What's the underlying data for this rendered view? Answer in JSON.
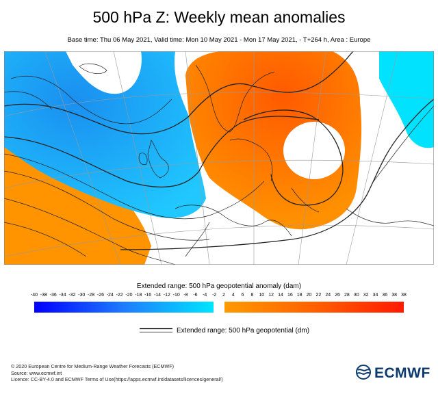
{
  "title": "500 hPa Z: Weekly mean anomalies",
  "subtitle": "Base time: Thu 06 May 2021, Valid time: Mon 10 May 2021 - Mon 17 May 2021, - T+264 h, Area : Europe",
  "colorbar": {
    "title": "Extended range: 500 hPa geopotential anomaly (dam)",
    "ticks": [
      "-40",
      "-38",
      "-36",
      "-34",
      "-32",
      "-30",
      "-28",
      "-26",
      "-24",
      "-22",
      "-20",
      "-18",
      "-16",
      "-14",
      "-12",
      "-10",
      "-8",
      "-6",
      "-4",
      "-2",
      "2",
      "4",
      "6",
      "8",
      "10",
      "12",
      "14",
      "16",
      "18",
      "20",
      "22",
      "24",
      "26",
      "28",
      "30",
      "32",
      "34",
      "36",
      "38",
      "38"
    ],
    "negative_colors": [
      "#0000ff",
      "#1e90ff",
      "#00e5ff"
    ],
    "positive_colors": [
      "#ff8c00",
      "#ff6400",
      "#ff2000"
    ]
  },
  "legend": {
    "label": "Extended range: 500 hPa geopotential (dm)"
  },
  "footer": {
    "line1": "© 2020 European Centre for Medium-Range Weather Forecasts (ECMWF)",
    "line2": "Source: www.ecmwf.int",
    "line3": "Licence: CC-BY-4.0 and ECMWF Terms of Use(https://apps.ecmwf.int/datasets/licences/general/)"
  },
  "logo": {
    "text": "ECMWF",
    "color": "#0d3a6e"
  },
  "map_colors": {
    "negative_anomaly": "#1ea5f0",
    "weak_negative": "#00e6ff",
    "positive_anomaly": "#ff8c00",
    "strong_positive": "#ff5a00"
  }
}
